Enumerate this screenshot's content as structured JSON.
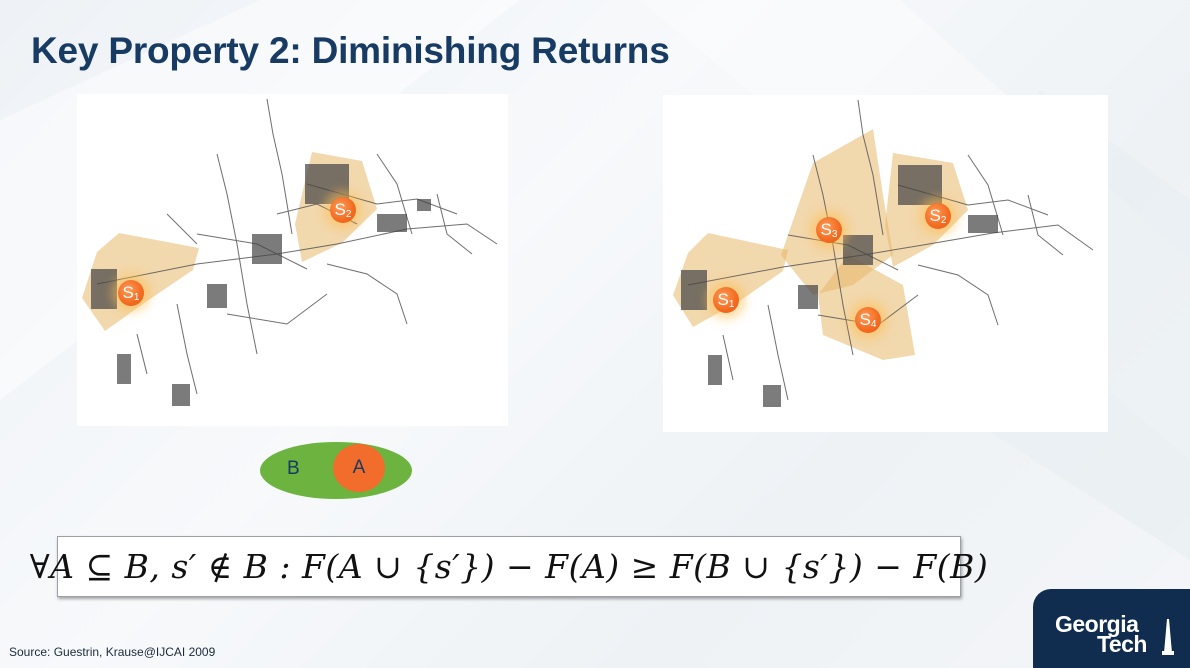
{
  "slide": {
    "title": "Key Property 2: Diminishing Returns",
    "source": "Source: Guestrin, Krause@IJCAI 2009"
  },
  "maps": {
    "left": {
      "sensors": [
        {
          "label": "S",
          "index": "1"
        },
        {
          "label": "S",
          "index": "2"
        }
      ]
    },
    "right": {
      "sensors": [
        {
          "label": "S",
          "index": "1"
        },
        {
          "label": "S",
          "index": "2"
        },
        {
          "label": "S",
          "index": "3"
        },
        {
          "label": "S",
          "index": "4"
        }
      ]
    }
  },
  "venn": {
    "outer_label": "B",
    "inner_label": "A",
    "outer_color": "#6db33f",
    "inner_color": "#f26d2b"
  },
  "formula": "∀A ⊆ B, s′ ∉ B : F(A ∪ {s′}) − F(A) ≥ F(B ∪ {s′}) − F(B)",
  "logo": {
    "line1": "Georgia",
    "line2": "Tech",
    "color": "#102c4e"
  },
  "colors": {
    "title": "#173b63",
    "sensor": "#f26a1f",
    "coverage": "#e7b86a"
  }
}
